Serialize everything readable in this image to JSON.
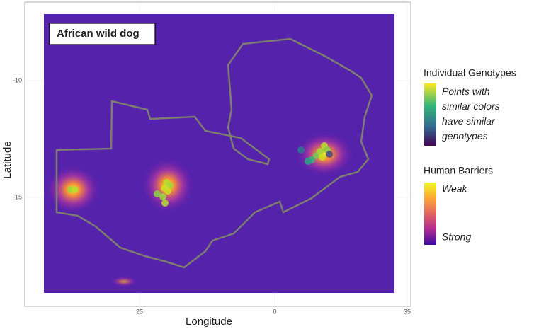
{
  "map": {
    "title": "African wild dog",
    "xlabel": "Longitude",
    "ylabel": "Latitude",
    "xticks": [
      "25",
      "0",
      "35"
    ],
    "yticks": [
      "-10",
      "-15"
    ],
    "legends": [
      {
        "title": "Individual Genotypes",
        "label": "Points with similar colors have similar genotypes"
      },
      {
        "title": "Human Barriers",
        "labels": [
          "Weak",
          "Strong"
        ]
      }
    ]
  }
}
